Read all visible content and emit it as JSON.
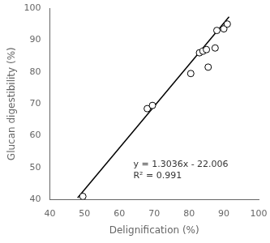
{
  "chart_data": {
    "type": "scatter",
    "xlabel": "Delignification (%)",
    "ylabel": "Glucan digestibility (%)",
    "series": [
      {
        "type": "line",
        "color": "black",
        "marker": "none",
        "line_style": "solid",
        "x": [
          48.0,
          91.5
        ],
        "values": [
          40.5668,
          97.2734
        ]
      },
      {
        "type": "scatter",
        "color": "black",
        "marker": "open_circle",
        "x": [
          49.5,
          68.0,
          69.5,
          80.5,
          83.0,
          84.0,
          85.0,
          85.5,
          87.5,
          88.0,
          90.0,
          91.0
        ],
        "values": [
          41.0,
          68.5,
          69.5,
          79.5,
          86.0,
          86.5,
          87.0,
          81.5,
          87.5,
          93.0,
          93.5,
          95.0
        ]
      }
    ],
    "annotations": [
      "y = 1.3036x - 22.006",
      "R² = 0.991"
    ],
    "xlim": [
      40,
      100
    ],
    "ylim": [
      40,
      100
    ],
    "xticks": [
      40,
      50,
      60,
      70,
      80,
      90,
      100
    ],
    "yticks": [
      40,
      50,
      60,
      70,
      80,
      90,
      100
    ],
    "grid": false
  }
}
